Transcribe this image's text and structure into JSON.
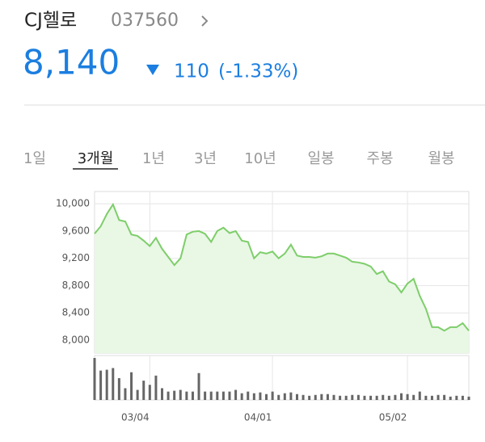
{
  "header": {
    "name": "CJ헬로",
    "code": "037560",
    "price": "8,140",
    "change": "110",
    "change_pct": "(-1.33%)"
  },
  "tabs": [
    "1일",
    "3개월",
    "1년",
    "3년",
    "10년",
    "일봉",
    "주봉",
    "월봉"
  ],
  "chart_data": {
    "type": "line",
    "categories": [
      null,
      null,
      null,
      null,
      null,
      null,
      null,
      null,
      null,
      "03/04",
      null,
      null,
      null,
      null,
      null,
      null,
      null,
      null,
      null,
      null,
      null,
      null,
      null,
      null,
      null,
      null,
      null,
      null,
      null,
      "04/01",
      null,
      null,
      null,
      null,
      null,
      null,
      null,
      null,
      null,
      null,
      null,
      null,
      null,
      null,
      null,
      null,
      null,
      null,
      null,
      null,
      null,
      "05/02",
      null,
      null,
      null,
      null,
      null,
      null,
      null,
      null,
      null,
      null
    ],
    "series": [
      {
        "color": "#7dce6a",
        "values": [
          9560,
          9670,
          9850,
          9990,
          9760,
          9740,
          9550,
          9530,
          9460,
          9380,
          9500,
          9340,
          9220,
          9100,
          9200,
          9550,
          9590,
          9600,
          9560,
          9440,
          9600,
          9650,
          9570,
          9600,
          9460,
          9440,
          9200,
          9290,
          9270,
          9300,
          9200,
          9270,
          9400,
          9240,
          9220,
          9220,
          9210,
          9230,
          9270,
          9270,
          9240,
          9210,
          9150,
          9140,
          9120,
          9080,
          8970,
          9010,
          8860,
          8820,
          8700,
          8830,
          8900,
          8650,
          8460,
          8190,
          8190,
          8140,
          8190,
          8190,
          8250,
          8140
        ]
      }
    ],
    "volume": {
      "color": "#666666",
      "values": [
        50,
        35,
        36,
        38,
        26,
        14,
        33,
        12,
        23,
        18,
        29,
        14,
        10,
        11,
        12,
        10,
        10,
        32,
        10,
        10,
        10,
        10,
        10,
        12,
        8,
        10,
        8,
        9,
        7,
        10,
        6,
        8,
        9,
        7,
        6,
        5,
        6,
        7,
        7,
        6,
        5,
        5,
        6,
        6,
        5,
        5,
        5,
        6,
        5,
        6,
        8,
        7,
        6,
        10,
        5,
        5,
        6,
        6,
        4,
        5,
        5,
        4
      ]
    },
    "ylim": [
      7810,
      10180
    ],
    "yticks": [
      {
        "value": 8000,
        "label": "8,000"
      },
      {
        "value": 8400,
        "label": "8,400"
      },
      {
        "value": 8800,
        "label": "8,800"
      },
      {
        "value": 9200,
        "label": "9,200"
      },
      {
        "value": 9600,
        "label": "9,600"
      },
      {
        "value": 10000,
        "label": "10,000"
      }
    ],
    "grid": true
  }
}
